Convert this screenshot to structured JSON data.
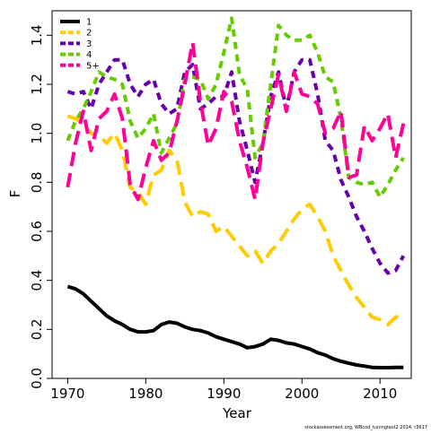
{
  "chart_data": {
    "type": "line",
    "title": "",
    "xlabel": "Year",
    "ylabel": "F",
    "xlim": [
      1968,
      2014
    ],
    "ylim": [
      0,
      1.5
    ],
    "xticks": [
      1970,
      1980,
      1990,
      2000,
      2010
    ],
    "yticks": [
      0.0,
      0.2,
      0.4,
      0.6,
      0.8,
      1.0,
      1.2,
      1.4
    ],
    "xtick_labels": [
      "1970",
      "1980",
      "1990",
      "2000",
      "2010"
    ],
    "ytick_labels": [
      "0.0",
      "0.2",
      "0.4",
      "0.6",
      "0.8",
      "1.0",
      "1.2",
      "1.4"
    ],
    "grid": false,
    "legend_position": "top-left",
    "x": [
      1970,
      1971,
      1972,
      1973,
      1974,
      1975,
      1976,
      1977,
      1978,
      1979,
      1980,
      1981,
      1982,
      1983,
      1984,
      1985,
      1986,
      1987,
      1988,
      1989,
      1990,
      1991,
      1992,
      1993,
      1994,
      1995,
      1996,
      1997,
      1998,
      1999,
      2000,
      2001,
      2002,
      2003,
      2004,
      2005,
      2006,
      2007,
      2008,
      2009,
      2010,
      2011,
      2012,
      2013
    ],
    "series": [
      {
        "name": "1",
        "color": "#000000",
        "dash": "solid",
        "values": [
          0.375,
          0.365,
          0.345,
          0.315,
          0.285,
          0.255,
          0.235,
          0.22,
          0.2,
          0.19,
          0.19,
          0.195,
          0.22,
          0.23,
          0.225,
          0.21,
          0.2,
          0.195,
          0.185,
          0.17,
          0.16,
          0.15,
          0.14,
          0.125,
          0.13,
          0.14,
          0.16,
          0.155,
          0.145,
          0.14,
          0.13,
          0.12,
          0.105,
          0.095,
          0.08,
          0.07,
          0.062,
          0.055,
          0.05,
          0.045,
          0.044,
          0.044,
          0.045,
          0.045
        ]
      },
      {
        "name": "2",
        "color": "#ffcc00",
        "dash": "long-dash",
        "values": [
          1.07,
          1.06,
          1.04,
          1.0,
          0.99,
          0.96,
          1.0,
          0.93,
          0.78,
          0.76,
          0.71,
          0.83,
          0.85,
          0.93,
          0.89,
          0.72,
          0.66,
          0.68,
          0.67,
          0.6,
          0.62,
          0.58,
          0.54,
          0.5,
          0.52,
          0.47,
          0.52,
          0.55,
          0.6,
          0.65,
          0.69,
          0.71,
          0.66,
          0.6,
          0.5,
          0.44,
          0.38,
          0.33,
          0.29,
          0.25,
          0.24,
          0.22,
          0.25,
          0.26
        ]
      },
      {
        "name": "3",
        "color": "#6600aa",
        "dash": "dash",
        "values": [
          1.17,
          1.16,
          1.17,
          1.1,
          1.2,
          1.25,
          1.3,
          1.3,
          1.2,
          1.15,
          1.2,
          1.22,
          1.12,
          1.08,
          1.1,
          1.25,
          1.28,
          1.1,
          1.12,
          1.15,
          1.15,
          1.25,
          1.05,
          0.93,
          0.8,
          0.96,
          1.15,
          1.25,
          1.1,
          1.25,
          1.3,
          1.3,
          1.16,
          0.97,
          0.93,
          0.81,
          0.74,
          0.66,
          0.6,
          0.53,
          0.47,
          0.43,
          0.44,
          0.5
        ]
      },
      {
        "name": "4",
        "color": "#66cc00",
        "dash": "dash",
        "values": [
          0.97,
          1.05,
          1.1,
          1.17,
          1.25,
          1.23,
          1.22,
          1.2,
          1.05,
          0.98,
          1.02,
          1.08,
          0.92,
          0.98,
          1.04,
          1.22,
          1.23,
          1.22,
          1.14,
          1.2,
          1.33,
          1.47,
          1.24,
          1.18,
          0.9,
          0.96,
          1.2,
          1.44,
          1.4,
          1.38,
          1.38,
          1.4,
          1.33,
          1.23,
          1.21,
          1.06,
          0.82,
          0.8,
          0.79,
          0.8,
          0.74,
          0.79,
          0.85,
          0.9
        ]
      },
      {
        "name": "5+",
        "color": "#ff0099",
        "dash": "long-dash",
        "values": [
          0.78,
          0.96,
          1.09,
          0.93,
          1.06,
          1.09,
          1.16,
          1.06,
          0.79,
          0.73,
          0.86,
          0.97,
          0.89,
          0.92,
          1.05,
          1.2,
          1.37,
          1.13,
          0.95,
          1.02,
          1.17,
          1.13,
          0.97,
          0.86,
          0.73,
          0.96,
          1.1,
          1.24,
          1.09,
          1.25,
          1.16,
          1.15,
          1.12,
          1.0,
          1.02,
          1.09,
          0.82,
          0.83,
          1.03,
          0.97,
          1.02,
          1.08,
          0.9,
          1.04
        ]
      }
    ]
  },
  "footer_text": "stockassessment.org,  WBcod_tuningtest2  2014,  r3617"
}
